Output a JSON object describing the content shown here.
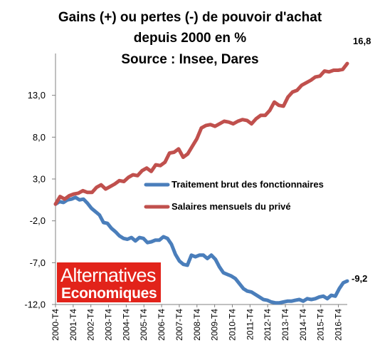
{
  "chart_data": {
    "type": "line",
    "title": [
      "Gains (+) ou pertes (-) de pouvoir d'achat",
      "depuis 2000 en %",
      "Source : Insee, Dares"
    ],
    "ylim": [
      -12,
      18
    ],
    "y_ticks": [
      "13,0",
      "8,0",
      "3,0",
      "-2,0",
      "-7,0",
      "-12,0"
    ],
    "y_tick_values": [
      13,
      8,
      3,
      -2,
      -7,
      -12
    ],
    "x_ticks": [
      "2000-T4",
      "2001-T4",
      "2002-T4",
      "2003-T4",
      "2004-T4",
      "2005-T4",
      "2006-T4",
      "2007-T4",
      "2008-T4",
      "2009-T4",
      "2010-T4",
      "2011-T4",
      "2012-T4",
      "2013-T4",
      "2014-T4",
      "2015-T4",
      "2016-T4"
    ],
    "x_start": "2000-T4",
    "x_end": "2017-T2",
    "grid": false,
    "legend_position": "center-right",
    "series": [
      {
        "name": "Traitement brut des fonctionnaires",
        "color": "#4a7ebb",
        "end_label": "-9,2",
        "values": [
          0,
          0.3,
          0.2,
          0.5,
          0.6,
          0.8,
          0.5,
          0.6,
          0.1,
          -0.5,
          -0.9,
          -1.3,
          -2.2,
          -2.3,
          -2.9,
          -3.3,
          -3.8,
          -4.1,
          -4.2,
          -4.0,
          -4.4,
          -4.0,
          -4.1,
          -4.6,
          -4.5,
          -4.3,
          -4.3,
          -3.9,
          -4.1,
          -4.8,
          -6.0,
          -6.8,
          -7.2,
          -7.3,
          -6.1,
          -6.3,
          -6.1,
          -6.1,
          -6.5,
          -6.1,
          -6.6,
          -7.5,
          -8.2,
          -8.4,
          -8.6,
          -8.9,
          -9.5,
          -10.1,
          -10.4,
          -10.5,
          -10.8,
          -11.1,
          -11.4,
          -11.5,
          -11.7,
          -11.8,
          -11.8,
          -11.7,
          -11.6,
          -11.6,
          -11.5,
          -11.4,
          -11.6,
          -11.3,
          -11.4,
          -11.3,
          -11.1,
          -11.0,
          -11.3,
          -10.9,
          -11.0,
          -10.1,
          -9.4,
          -9.2
        ]
      },
      {
        "name": "Salaires mensuels du privé",
        "color": "#c0504d",
        "end_label": "16,8",
        "values": [
          0,
          0.9,
          0.6,
          1.0,
          1.2,
          1.3,
          1.6,
          1.4,
          1.4,
          2.0,
          2.3,
          1.8,
          2.1,
          2.4,
          2.8,
          2.7,
          3.2,
          3.5,
          3.4,
          4.0,
          4.3,
          3.9,
          4.7,
          4.6,
          5.0,
          6.1,
          6.2,
          6.6,
          5.6,
          6.0,
          6.9,
          7.8,
          9.1,
          9.4,
          9.5,
          9.3,
          9.6,
          9.9,
          9.8,
          9.6,
          9.9,
          10.1,
          10.0,
          9.6,
          10.2,
          10.6,
          10.6,
          11.2,
          12.2,
          11.8,
          11.7,
          12.8,
          13.4,
          13.6,
          14.2,
          14.5,
          14.8,
          15.2,
          15.3,
          15.9,
          15.8,
          16.0,
          16.0,
          16.1,
          16.8
        ]
      }
    ]
  },
  "branding": {
    "logo_line1": "Alternatives",
    "logo_line2": "Economiques",
    "logo_color": "#e2231a"
  }
}
